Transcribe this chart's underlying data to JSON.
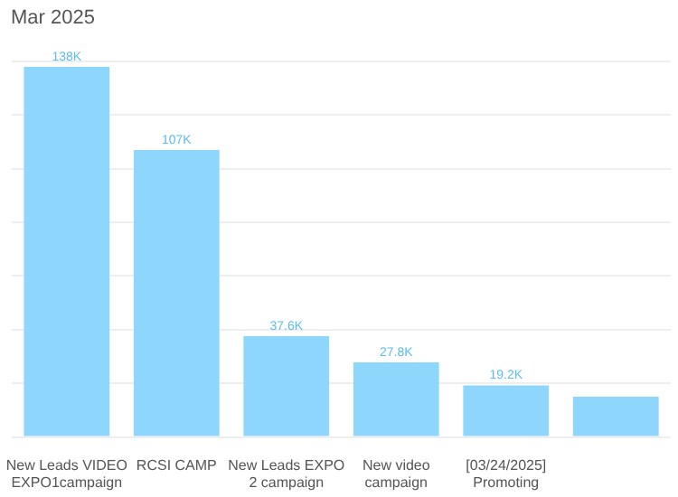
{
  "chart_data": {
    "type": "bar",
    "title": "Mar 2025",
    "categories": [
      "New Leads VIDEO EXPO1campaign",
      "RCSI CAMP",
      "New Leads EXPO 2 campaign",
      "New video campaign",
      "[03/24/2025] Promoting",
      null
    ],
    "values": [
      138,
      107,
      37.6,
      27.8,
      19.2,
      15
    ],
    "value_labels": [
      "138K",
      "107K",
      "37.6K",
      "27.8K",
      "19.2K",
      null
    ],
    "color": "#8fd6fc",
    "ylim": [
      0,
      140
    ],
    "yticks": [
      {
        "value": 0,
        "label": null
      },
      {
        "value": 20,
        "label": null
      },
      {
        "value": 40,
        "label": null
      },
      {
        "value": 60,
        "label": null
      },
      {
        "value": 80,
        "label": null
      },
      {
        "value": 100,
        "label": null
      },
      {
        "value": 120,
        "label": null
      },
      {
        "value": 140,
        "label": null
      }
    ],
    "tick_labels": "x",
    "grid": "y",
    "legend": false
  }
}
